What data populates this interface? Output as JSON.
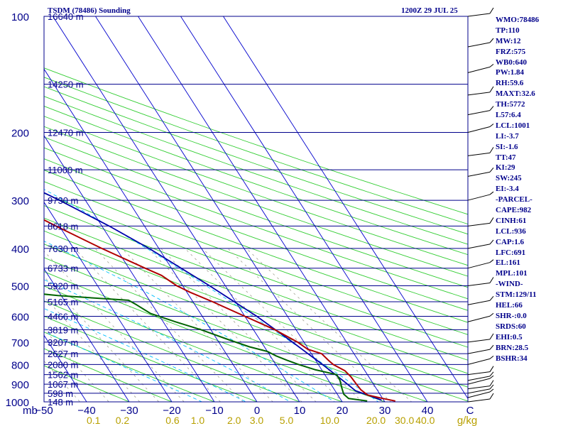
{
  "header": {
    "station": "TSDM (78486) Sounding",
    "time": "1200Z 29 JUL 25"
  },
  "panel": [
    "WMO:78486",
    "TP:110",
    "MW:12",
    "FRZ:575",
    "WB0:640",
    "PW:1.84",
    "RH:59.6",
    "MAXT:32.6",
    "TH:5772",
    "L57:6.4",
    "LCL:1001",
    "LI:-3.7",
    "SI:-1.6",
    "TT:47",
    "KI:29",
    "SW:245",
    "EI:-3.4",
    "-PARCEL-",
    "CAPE:982",
    "CINH:61",
    "LCL:936",
    "CAP:1.6",
    "LFC:691",
    "EL:161",
    "MPL:101",
    "-WIND-",
    "STM:129/11",
    "HEL:66",
    "SHR-:0.0",
    "SRDS:60",
    "EHI:0.5",
    "BRN:28.5",
    "BSHR:34"
  ],
  "colors": {
    "isobar": "#00008b",
    "isotherm": "#0000cd",
    "dry_adiabat": "#32cd32",
    "moist_adiabat": "#00bfff",
    "mixing_ratio": "#a0a090",
    "temperature": "#b00000",
    "dewpoint": "#006400",
    "parcel": "#0000aa",
    "text_navy": "#00008b",
    "mixing_label": "#b8a000"
  },
  "chart_data": {
    "type": "line",
    "title": "TSDM (78486) Sounding",
    "xlabel": "",
    "ylabel": "mb",
    "pressure_levels": [
      100,
      200,
      300,
      400,
      500,
      600,
      700,
      800,
      900,
      1000
    ],
    "pressure_labels": [
      "100",
      "200",
      "300",
      "400",
      "500",
      "600",
      "700",
      "800",
      "900",
      "1000"
    ],
    "temperature_ticks": [
      {
        "v": -50,
        "label": "−50"
      },
      {
        "v": -40,
        "label": "−40"
      },
      {
        "v": -30,
        "label": "−30"
      },
      {
        "v": -20,
        "label": "−20"
      },
      {
        "v": -10,
        "label": "−10"
      },
      {
        "v": 0,
        "label": "0"
      },
      {
        "v": 10,
        "label": "10"
      },
      {
        "v": 20,
        "label": "20"
      },
      {
        "v": 30,
        "label": "30"
      },
      {
        "v": 40,
        "label": "40"
      },
      {
        "v": 50,
        "label": "C"
      }
    ],
    "mixing_ratio_labels": [
      {
        "label": "0.1",
        "w": 0.1
      },
      {
        "label": "0.2",
        "w": 0.2
      },
      {
        "label": "0.6",
        "w": 0.6
      },
      {
        "label": "1.0",
        "w": 1.0
      },
      {
        "label": "2.0",
        "w": 2.0
      },
      {
        "label": "3.0",
        "w": 3.0
      },
      {
        "label": "5.0",
        "w": 5.0
      },
      {
        "label": "10.0",
        "w": 10.0
      },
      {
        "label": "20.0",
        "w": 20.0
      },
      {
        "label": "30.0",
        "w": 30.0
      },
      {
        "label": "40.0",
        "w": 40.0
      }
    ],
    "mixing_ratio_unit": "g/kg",
    "height_labels": [
      {
        "p": 100,
        "text": "16640 m"
      },
      {
        "p": 150,
        "text": "14250 m"
      },
      {
        "p": 200,
        "text": "12470 m"
      },
      {
        "p": 250,
        "text": "11000 m"
      },
      {
        "p": 300,
        "text": "9730 m"
      },
      {
        "p": 350,
        "text": "8618 m"
      },
      {
        "p": 400,
        "text": "7630 m"
      },
      {
        "p": 450,
        "text": "6733 m"
      },
      {
        "p": 500,
        "text": "5920 m"
      },
      {
        "p": 550,
        "text": "5165 m"
      },
      {
        "p": 600,
        "text": "4466 m"
      },
      {
        "p": 650,
        "text": "3819 m"
      },
      {
        "p": 700,
        "text": "3207 m"
      },
      {
        "p": 750,
        "text": "2627 m"
      },
      {
        "p": 800,
        "text": "2080 m"
      },
      {
        "p": 850,
        "text": "1562 m"
      },
      {
        "p": 900,
        "text": "1067 m"
      },
      {
        "p": 950,
        "text": "598 m"
      },
      {
        "p": 1000,
        "text": "148 m"
      }
    ],
    "temperature_profile": [
      {
        "p": 995,
        "t": 32.6
      },
      {
        "p": 980,
        "t": 30.0
      },
      {
        "p": 960,
        "t": 27.0
      },
      {
        "p": 930,
        "t": 26.2
      },
      {
        "p": 900,
        "t": 26.0
      },
      {
        "p": 860,
        "t": 25.8
      },
      {
        "p": 830,
        "t": 25.3
      },
      {
        "p": 800,
        "t": 23.5
      },
      {
        "p": 780,
        "t": 23.0
      },
      {
        "p": 750,
        "t": 22.4
      },
      {
        "p": 730,
        "t": 19.8
      },
      {
        "p": 700,
        "t": 18.5
      },
      {
        "p": 650,
        "t": 15.0
      },
      {
        "p": 600,
        "t": 10.0
      },
      {
        "p": 550,
        "t": 4.6
      },
      {
        "p": 520,
        "t": 0.8
      },
      {
        "p": 500,
        "t": -1.4
      },
      {
        "p": 470,
        "t": -3.4
      },
      {
        "p": 450,
        "t": -6.2
      },
      {
        "p": 400,
        "t": -13.4
      },
      {
        "p": 350,
        "t": -20.8
      },
      {
        "p": 300,
        "t": -28.6
      },
      {
        "p": 250,
        "t": -38.6
      },
      {
        "p": 200,
        "t": -49.5
      },
      {
        "p": 185,
        "t": -54.6
      },
      {
        "p": 150,
        "t": -61.8
      },
      {
        "p": 130,
        "t": -62.0
      },
      {
        "p": 118,
        "t": -62.0
      },
      {
        "p": 112,
        "t": -65.7
      },
      {
        "p": 105,
        "t": -68.1
      },
      {
        "p": 100,
        "t": -68.0
      }
    ],
    "dewpoint_profile": [
      {
        "p": 995,
        "td": 26.0
      },
      {
        "p": 980,
        "td": 22.0
      },
      {
        "p": 955,
        "td": 21.5
      },
      {
        "p": 920,
        "td": 22.0
      },
      {
        "p": 880,
        "td": 22.7
      },
      {
        "p": 850,
        "td": 22.8
      },
      {
        "p": 825,
        "td": 18.4
      },
      {
        "p": 800,
        "td": 15.4
      },
      {
        "p": 780,
        "td": 13.3
      },
      {
        "p": 760,
        "td": 11.4
      },
      {
        "p": 740,
        "td": 10.0
      },
      {
        "p": 720,
        "td": 6.5
      },
      {
        "p": 690,
        "td": 2.7
      },
      {
        "p": 650,
        "td": -2.3
      },
      {
        "p": 620,
        "td": -7.1
      },
      {
        "p": 590,
        "td": -11.7
      },
      {
        "p": 560,
        "td": -13.7
      },
      {
        "p": 545,
        "td": -14.9
      },
      {
        "p": 530,
        "td": -30.8
      },
      {
        "p": 510,
        "td": -44.6
      },
      {
        "p": 490,
        "td": -47.1
      },
      {
        "p": 470,
        "td": -36.1
      },
      {
        "p": 455,
        "td": -38.2
      },
      {
        "p": 450,
        "td": -42.5
      },
      {
        "p": 410,
        "td": -48.6
      },
      {
        "p": 390,
        "td": -51.9
      },
      {
        "p": 370,
        "td": -51.6
      },
      {
        "p": 360,
        "td": -54.7
      },
      {
        "p": 340,
        "td": -53.7
      },
      {
        "p": 330,
        "td": -59.1
      },
      {
        "p": 315,
        "td": -62.8
      },
      {
        "p": 300,
        "td": -62.4
      },
      {
        "p": 280,
        "td": -63.2
      },
      {
        "p": 260,
        "td": -65.8
      },
      {
        "p": 240,
        "td": -67.4
      },
      {
        "p": 220,
        "td": -71.0
      },
      {
        "p": 200,
        "td": -76.3
      },
      {
        "p": 180,
        "td": -78.7
      },
      {
        "p": 155,
        "td": -84.2
      },
      {
        "p": 140,
        "td": -85.7
      },
      {
        "p": 130,
        "td": -88.4
      },
      {
        "p": 118,
        "td": -89.9
      },
      {
        "p": 108,
        "td": -90.0
      },
      {
        "p": 105,
        "td": -91.0
      },
      {
        "p": 100,
        "td": -90.9
      }
    ],
    "parcel_profile": [
      {
        "p": 990,
        "t": 29.5
      },
      {
        "p": 960,
        "t": 27.0
      },
      {
        "p": 936,
        "t": 24.8
      },
      {
        "p": 900,
        "t": 23.9
      },
      {
        "p": 850,
        "t": 22.5
      },
      {
        "p": 800,
        "t": 21.0
      },
      {
        "p": 750,
        "t": 19.2
      },
      {
        "p": 700,
        "t": 17.3
      },
      {
        "p": 600,
        "t": 12.8
      },
      {
        "p": 500,
        "t": 6.3
      },
      {
        "p": 400,
        "t": -2.3
      },
      {
        "p": 350,
        "t": -8.3
      },
      {
        "p": 300,
        "t": -16.1
      },
      {
        "p": 250,
        "t": -26.2
      },
      {
        "p": 200,
        "t": -39.4
      },
      {
        "p": 150,
        "t": -56.6
      },
      {
        "p": 125,
        "t": -66.0
      },
      {
        "p": 115,
        "t": -70.5
      }
    ]
  }
}
